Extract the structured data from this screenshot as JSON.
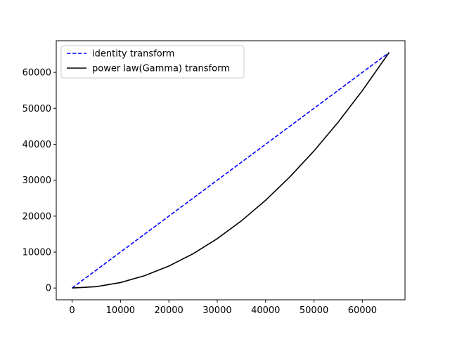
{
  "chart_data": {
    "type": "line",
    "title": "",
    "xlabel": "",
    "ylabel": "",
    "xlim": [
      -3277,
      68812
    ],
    "ylim": [
      -3277,
      68812
    ],
    "x_ticks": [
      0,
      10000,
      20000,
      30000,
      40000,
      50000,
      60000
    ],
    "x_tick_labels": [
      "0",
      "10000",
      "20000",
      "30000",
      "40000",
      "50000",
      "60000"
    ],
    "y_ticks": [
      0,
      10000,
      20000,
      30000,
      40000,
      50000,
      60000
    ],
    "y_tick_labels": [
      "0",
      "10000",
      "20000",
      "30000",
      "40000",
      "50000",
      "60000"
    ],
    "grid": false,
    "legend_position": "upper-left",
    "series": [
      {
        "name": "identity transform",
        "color": "#0000ff",
        "style": "dashed",
        "x": [
          0,
          65535
        ],
        "y": [
          0,
          65535
        ]
      },
      {
        "name": "power law(Gamma) transform",
        "color": "#000000",
        "style": "solid",
        "x": [
          0,
          5000,
          10000,
          15000,
          20000,
          25000,
          30000,
          35000,
          40000,
          45000,
          50000,
          55000,
          60000,
          65535
        ],
        "y": [
          0,
          381,
          1526,
          3433,
          6104,
          9537,
          13733,
          18692,
          24414,
          30899,
          38147,
          46157,
          54931,
          65535
        ]
      }
    ]
  }
}
